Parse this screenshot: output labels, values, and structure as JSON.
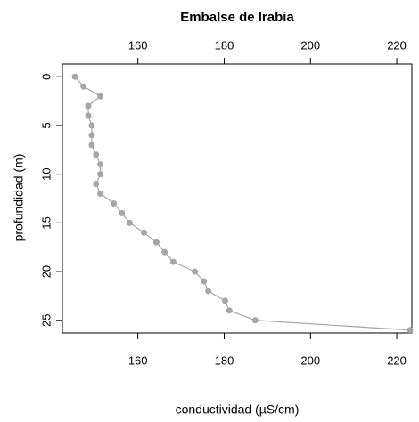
{
  "chart_data": {
    "type": "line",
    "title": "Embalse de Irabia",
    "x_label": "conductividad (µS/cm)",
    "y_label": "profundidad (m)",
    "x": [
      145.4,
      147.4,
      151.3,
      148.5,
      148.5,
      149.3,
      149.3,
      149.3,
      150.3,
      151.3,
      151.3,
      150.3,
      151.3,
      154.4,
      156.3,
      158.1,
      161.4,
      164.3,
      166.2,
      168.2,
      173.2,
      175.3,
      176.3,
      180.2,
      181.2,
      187.2,
      223.1
    ],
    "series": [
      {
        "color": "#a6a6a6",
        "values": [
          0,
          1,
          2,
          3,
          4,
          5,
          6,
          7,
          8,
          9,
          10,
          11,
          12,
          13,
          14,
          15,
          16,
          17,
          18,
          19,
          20,
          21,
          22,
          23,
          24,
          25,
          26
        ]
      }
    ],
    "xlim": [
      142.5,
      223.5
    ],
    "xticks": [
      160,
      180,
      200,
      220
    ],
    "ylim": [
      -1.3,
      26.3
    ],
    "yticks": [
      0,
      5,
      10,
      15,
      20,
      25
    ],
    "y_inverted": true,
    "x_axis_top": true,
    "markers": true
  }
}
